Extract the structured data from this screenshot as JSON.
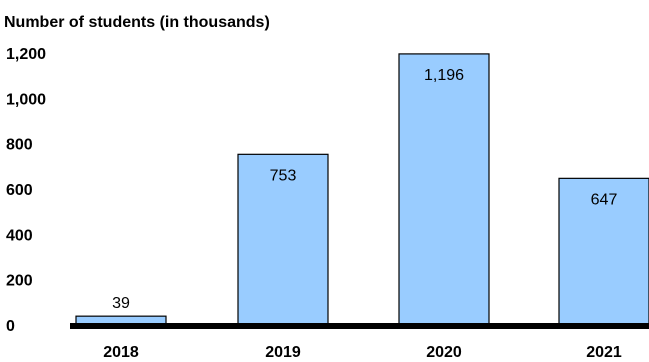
{
  "chart_data": {
    "type": "bar",
    "title": "Number of students (in thousands)",
    "xlabel": "",
    "ylabel": "",
    "categories": [
      "2018",
      "2019",
      "2020",
      "2021"
    ],
    "values": [
      39,
      753,
      1196,
      647
    ],
    "value_labels": [
      "39",
      "753",
      "1,196",
      "647"
    ],
    "yticks": [
      0,
      200,
      400,
      600,
      800,
      1000,
      1200
    ],
    "ytick_labels": [
      "0",
      "200",
      "400",
      "600",
      "800",
      "1,000",
      "1,200"
    ],
    "ylim": [
      0,
      1200
    ],
    "grid": false,
    "legend": "none",
    "colors": {
      "bar_fill": "#99ccff",
      "bar_stroke": "#000000",
      "baseline": "#000000",
      "text": "#000000"
    }
  }
}
